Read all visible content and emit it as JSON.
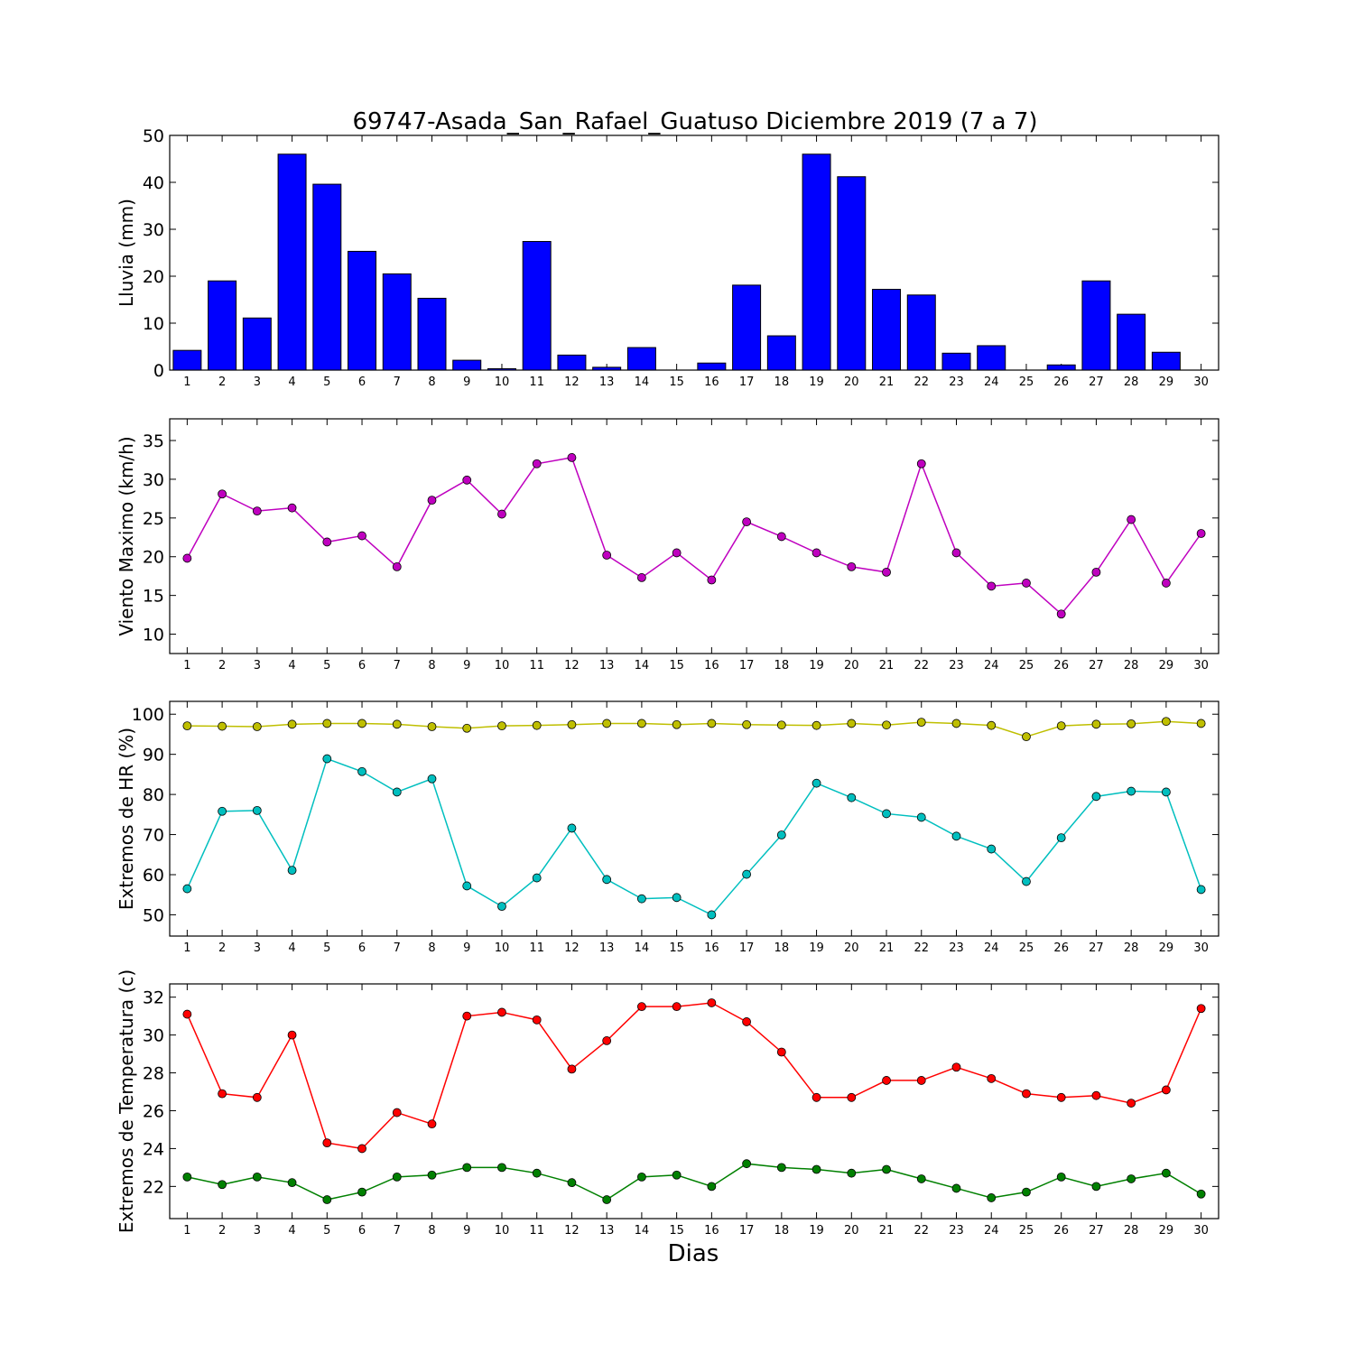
{
  "figure": {
    "title": "69747-Asada_San_Rafael_Guatuso Diciembre 2019  (7 a 7)",
    "xlabel": "Dias"
  },
  "chart_data": [
    {
      "type": "bar",
      "ylabel": "Lluvia (mm)",
      "ylim": [
        0,
        50
      ],
      "yticks": [
        0,
        10,
        20,
        30,
        40,
        50
      ],
      "categories": [
        "1",
        "2",
        "3",
        "4",
        "5",
        "6",
        "7",
        "8",
        "9",
        "10",
        "11",
        "12",
        "13",
        "14",
        "15",
        "16",
        "17",
        "18",
        "19",
        "20",
        "21",
        "22",
        "23",
        "24",
        "25",
        "26",
        "27",
        "28",
        "29",
        "30"
      ],
      "series": [
        {
          "color": "#0000ff",
          "values": [
            4.2,
            19.0,
            11.1,
            46.0,
            39.6,
            25.3,
            20.5,
            15.3,
            2.1,
            0.3,
            27.4,
            3.2,
            0.6,
            4.8,
            0.0,
            1.5,
            18.1,
            7.3,
            46.0,
            41.2,
            17.2,
            16.0,
            3.6,
            5.2,
            0.0,
            1.1,
            19.0,
            11.9,
            3.8,
            0.0
          ]
        }
      ]
    },
    {
      "type": "line",
      "ylabel": "Viento Maximo (km/h)",
      "ylim": [
        7.5,
        37.8
      ],
      "yticks": [
        10,
        15,
        20,
        25,
        30,
        35
      ],
      "categories": [
        "1",
        "2",
        "3",
        "4",
        "5",
        "6",
        "7",
        "8",
        "9",
        "10",
        "11",
        "12",
        "13",
        "14",
        "15",
        "16",
        "17",
        "18",
        "19",
        "20",
        "21",
        "22",
        "23",
        "24",
        "25",
        "26",
        "27",
        "28",
        "29",
        "30"
      ],
      "series": [
        {
          "color": "#bf00bf",
          "values": [
            19.8,
            28.1,
            25.9,
            26.3,
            21.9,
            22.7,
            18.7,
            27.3,
            29.9,
            25.5,
            32.0,
            32.8,
            20.2,
            17.3,
            20.5,
            17.0,
            24.5,
            22.6,
            20.5,
            18.7,
            18.0,
            32.0,
            20.5,
            16.2,
            16.6,
            12.6,
            18.0,
            24.8,
            16.6,
            23.0
          ]
        }
      ]
    },
    {
      "type": "line",
      "ylabel": "Extremos de HR (%)",
      "ylim": [
        44.7,
        103.2
      ],
      "yticks": [
        50,
        60,
        70,
        80,
        90,
        100
      ],
      "categories": [
        "1",
        "2",
        "3",
        "4",
        "5",
        "6",
        "7",
        "8",
        "9",
        "10",
        "11",
        "12",
        "13",
        "14",
        "15",
        "16",
        "17",
        "18",
        "19",
        "20",
        "21",
        "22",
        "23",
        "24",
        "25",
        "26",
        "27",
        "28",
        "29",
        "30"
      ],
      "series": [
        {
          "color": "#bfbf00",
          "values": [
            97.1,
            97.0,
            96.9,
            97.5,
            97.7,
            97.7,
            97.5,
            96.9,
            96.5,
            97.1,
            97.2,
            97.4,
            97.7,
            97.7,
            97.4,
            97.7,
            97.4,
            97.3,
            97.2,
            97.7,
            97.3,
            98.0,
            97.7,
            97.2,
            94.4,
            97.1,
            97.5,
            97.6,
            98.2,
            97.7
          ]
        },
        {
          "color": "#00bfbf",
          "values": [
            56.5,
            75.8,
            76.0,
            61.1,
            88.9,
            85.7,
            80.6,
            83.9,
            57.2,
            52.1,
            59.2,
            71.6,
            58.8,
            54.0,
            54.3,
            50.0,
            60.1,
            69.9,
            82.8,
            79.2,
            75.2,
            74.3,
            69.6,
            66.4,
            58.3,
            69.2,
            79.5,
            80.8,
            80.6,
            56.3
          ]
        }
      ]
    },
    {
      "type": "line",
      "ylabel": "Extremos de Temperatura (c)",
      "ylim": [
        20.3,
        32.7
      ],
      "yticks": [
        22,
        24,
        26,
        28,
        30,
        32
      ],
      "categories": [
        "1",
        "2",
        "3",
        "4",
        "5",
        "6",
        "7",
        "8",
        "9",
        "10",
        "11",
        "12",
        "13",
        "14",
        "15",
        "16",
        "17",
        "18",
        "19",
        "20",
        "21",
        "22",
        "23",
        "24",
        "25",
        "26",
        "27",
        "28",
        "29",
        "30"
      ],
      "series": [
        {
          "color": "#ff0000",
          "values": [
            31.1,
            26.9,
            26.7,
            30.0,
            24.3,
            24.0,
            25.9,
            25.3,
            31.0,
            31.2,
            30.8,
            28.2,
            29.7,
            31.5,
            31.5,
            31.7,
            30.7,
            29.1,
            26.7,
            26.7,
            27.6,
            27.6,
            28.3,
            27.7,
            26.9,
            26.7,
            26.8,
            26.4,
            27.1,
            31.4
          ]
        },
        {
          "color": "#008000",
          "values": [
            22.5,
            22.1,
            22.5,
            22.2,
            21.3,
            21.7,
            22.5,
            22.6,
            23.0,
            23.0,
            22.7,
            22.2,
            21.3,
            22.5,
            22.6,
            22.0,
            23.2,
            23.0,
            22.9,
            22.7,
            22.9,
            22.4,
            21.9,
            21.4,
            21.7,
            22.5,
            22.0,
            22.4,
            22.7,
            21.6
          ]
        }
      ]
    }
  ]
}
